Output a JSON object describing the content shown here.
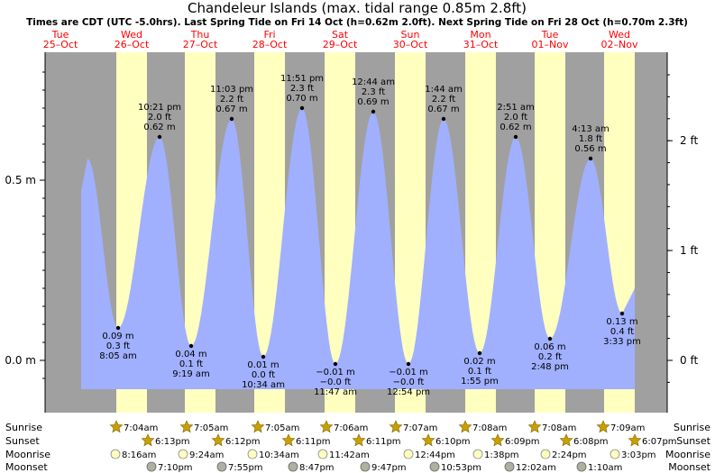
{
  "chart_data": {
    "type": "area",
    "title": "Chandeleur Islands (max. tidal range 0.85m 2.8ft)",
    "subtitle": "Times are CDT (UTC -5.0hrs). Last Spring Tide on Fri 14 Oct (h=0.62m 2.0ft). Next Spring Tide on Fri 28 Oct (h=0.70m 2.3ft)",
    "days": [
      {
        "dow": "Tue",
        "date": "25–Oct"
      },
      {
        "dow": "Wed",
        "date": "26–Oct"
      },
      {
        "dow": "Thu",
        "date": "27–Oct"
      },
      {
        "dow": "Fri",
        "date": "28–Oct"
      },
      {
        "dow": "Sat",
        "date": "29–Oct"
      },
      {
        "dow": "Sun",
        "date": "30–Oct"
      },
      {
        "dow": "Mon",
        "date": "31–Oct"
      },
      {
        "dow": "Tue",
        "date": "01–Nov"
      },
      {
        "dow": "Wed",
        "date": "02–Nov"
      }
    ],
    "y_left_ticks": [
      {
        "v": 0.5,
        "label": "0.5 m"
      },
      {
        "v": 0.0,
        "label": "0.0 m"
      }
    ],
    "y_right_ticks": [
      {
        "ft": 2,
        "label": "2 ft"
      },
      {
        "ft": 1,
        "label": "1 ft"
      },
      {
        "ft": 0,
        "label": "0 ft"
      }
    ],
    "ylim_m": [
      -0.08,
      0.85
    ],
    "tides": [
      {
        "h": 0.56,
        "type": "high",
        "lines": []
      },
      {
        "h": 0.09,
        "type": "low",
        "lines": [
          "0.09 m",
          "0.3 ft",
          "8:05 am"
        ]
      },
      {
        "h": 0.62,
        "type": "high",
        "lines": [
          "10:21 pm",
          "2.0 ft",
          "0.62 m"
        ]
      },
      {
        "h": 0.04,
        "type": "low",
        "lines": [
          "0.04 m",
          "0.1 ft",
          "9:19 am"
        ]
      },
      {
        "h": 0.67,
        "type": "high",
        "lines": [
          "11:03 pm",
          "2.2 ft",
          "0.67 m"
        ]
      },
      {
        "h": 0.01,
        "type": "low",
        "lines": [
          "0.01 m",
          "0.0 ft",
          "10:34 am"
        ]
      },
      {
        "h": 0.7,
        "type": "high",
        "lines": [
          "11:51 pm",
          "2.3 ft",
          "0.70 m"
        ]
      },
      {
        "h": -0.01,
        "type": "low",
        "lines": [
          "−0.01 m",
          "−0.0 ft",
          "11:47 am"
        ]
      },
      {
        "h": 0.69,
        "type": "high",
        "lines": [
          "12:44 am",
          "2.3 ft",
          "0.69 m"
        ]
      },
      {
        "h": -0.01,
        "type": "low",
        "lines": [
          "−0.01 m",
          "−0.0 ft",
          "12:54 pm"
        ]
      },
      {
        "h": 0.67,
        "type": "high",
        "lines": [
          "1:44 am",
          "2.2 ft",
          "0.67 m"
        ]
      },
      {
        "h": 0.02,
        "type": "low",
        "lines": [
          "0.02 m",
          "0.1 ft",
          "1:55 pm"
        ]
      },
      {
        "h": 0.62,
        "type": "high",
        "lines": [
          "2:51 am",
          "2.0 ft",
          "0.62 m"
        ]
      },
      {
        "h": 0.06,
        "type": "low",
        "lines": [
          "0.06 m",
          "0.2 ft",
          "2:48 pm"
        ]
      },
      {
        "h": 0.56,
        "type": "high",
        "lines": [
          "4:13 am",
          "1.8 ft",
          "0.56 m"
        ]
      },
      {
        "h": 0.13,
        "type": "low",
        "lines": [
          "0.13 m",
          "0.4 ft",
          "3:33 pm"
        ]
      }
    ],
    "rows": {
      "labels": [
        "Sunrise",
        "Sunset",
        "Moonrise",
        "Moonset"
      ],
      "sunrise": [
        "7:04am",
        "7:05am",
        "7:05am",
        "7:06am",
        "7:07am",
        "7:08am",
        "7:08am",
        "7:09am"
      ],
      "sunset": [
        "6:13pm",
        "6:12pm",
        "6:11pm",
        "6:11pm",
        "6:10pm",
        "6:09pm",
        "6:08pm",
        "6:07pm"
      ],
      "moonrise": [
        "8:16am",
        "9:24am",
        "10:34am",
        "11:42am",
        "12:44pm",
        "1:38pm",
        "2:24pm",
        "3:03pm"
      ],
      "moonset": [
        "7:10pm",
        "7:55pm",
        "8:47pm",
        "9:47pm",
        "10:53pm",
        "12:02am",
        "1:10am"
      ]
    },
    "colors": {
      "night": "#a0a0a0",
      "day": "#ffffc0",
      "water": "#a0b0ff",
      "date": "#ff0000",
      "sun": "#c8a000",
      "moonrise": "#ffffc0",
      "moonset": "#b0b0a0"
    }
  }
}
